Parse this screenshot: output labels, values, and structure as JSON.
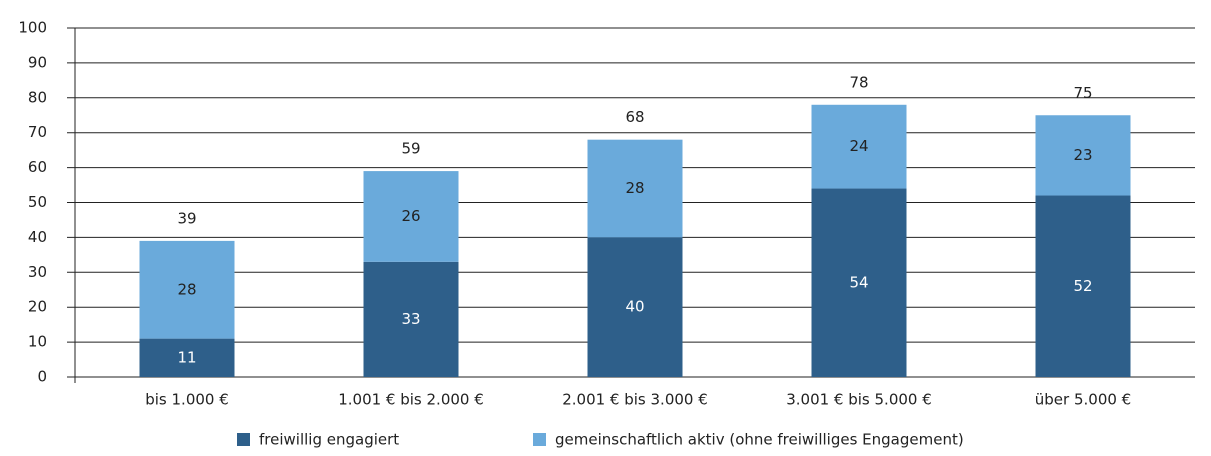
{
  "chart_data": {
    "type": "stacked_bar",
    "categories": [
      "bis 1.000 €",
      "1.001 € bis 2.000 €",
      "2.001 € bis 3.000 €",
      "3.001 € bis 5.000 €",
      "über 5.000 €"
    ],
    "series": [
      {
        "name": "freiwillig engagiert",
        "color": "#2e5f8a",
        "values": [
          11,
          33,
          40,
          54,
          52
        ]
      },
      {
        "name": "gemeinschaftlich aktiv (ohne freiwilliges Engagement)",
        "color": "#6aaadb",
        "values": [
          28,
          26,
          28,
          24,
          23
        ]
      }
    ],
    "totals": [
      39,
      59,
      68,
      78,
      75
    ],
    "ylim": [
      0,
      100
    ],
    "yticks": [
      0,
      10,
      20,
      30,
      40,
      50,
      60,
      70,
      80,
      90,
      100
    ],
    "grid": true
  }
}
